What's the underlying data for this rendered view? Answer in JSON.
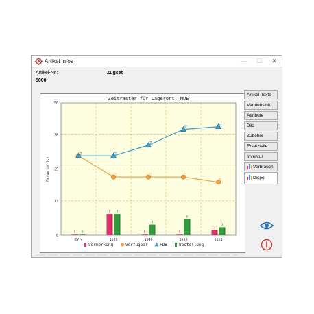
{
  "window": {
    "title": "Artikel Infos",
    "minimize": "—",
    "maximize": "☐",
    "close": "✕"
  },
  "article": {
    "label": "Artikel-Nr.:",
    "number": "5000",
    "name": "Zugset"
  },
  "tabs": [
    {
      "label": "Artikel-Texte"
    },
    {
      "label": "Vertriebsinfo"
    },
    {
      "label": "Attribute"
    },
    {
      "label": "Bild"
    },
    {
      "label": "Zubehör"
    },
    {
      "label": "Ersatzteile"
    },
    {
      "label": "Inventur"
    },
    {
      "label": "Verbrauch",
      "icon": "bar-chart-icon"
    },
    {
      "label": "Dispo",
      "icon": "bar-chart-icon",
      "active": true
    }
  ],
  "colors": {
    "vormerkung": "#e0306a",
    "verfuegbar": "#f5a040",
    "fdb": "#3a9dc8",
    "bestellung": "#2e9e3a",
    "plot_bg": "#fdfde0",
    "grid": "#d8c06a"
  },
  "chart_data": {
    "type": "bar+line",
    "title": "Zeitraster für Lagerort: NUE",
    "ylabel": "Menge in Stk",
    "ylim": [
      0,
      50
    ],
    "yticks": [
      "0",
      "13",
      "25",
      "38",
      "50"
    ],
    "categories": [
      "KW <",
      "1539",
      "1540",
      "1550",
      "1551"
    ],
    "bars": [
      {
        "name": "Vormerkung",
        "values": [
          0,
          8,
          0,
          0,
          2
        ],
        "labels": [
          "0",
          "8",
          "0",
          "0",
          "2"
        ]
      },
      {
        "name": "Bestellung",
        "values": [
          0,
          8,
          4,
          6,
          3
        ],
        "labels": [
          "0",
          "8",
          "4",
          "6",
          "3"
        ]
      }
    ],
    "lines": [
      {
        "name": "Verfügbar",
        "values": [
          30,
          22,
          22,
          22,
          20
        ],
        "labels": [
          "30",
          "22",
          "22",
          "22",
          "20"
        ]
      },
      {
        "name": "FDB",
        "values": [
          30,
          30,
          34,
          40,
          41
        ],
        "labels": [
          "30",
          "30",
          "34",
          "40",
          "41"
        ]
      }
    ],
    "legend": [
      {
        "name": "Vormerkung",
        "marker": "bar"
      },
      {
        "name": "Verfügbar",
        "marker": "circle"
      },
      {
        "name": "FDB",
        "marker": "triangle"
      },
      {
        "name": "Bestellung",
        "marker": "bar"
      }
    ],
    "grid": true,
    "legend_position": "bottom"
  }
}
